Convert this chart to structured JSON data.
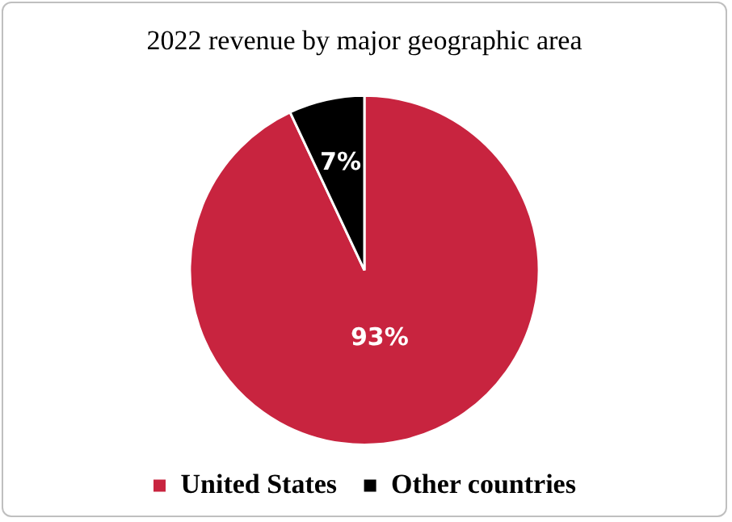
{
  "chart_data": {
    "type": "pie",
    "title": "2022 revenue by major geographic area",
    "categories": [
      "United States",
      "Other countries"
    ],
    "values": [
      93,
      7
    ],
    "colors": [
      "#c8243f",
      "#000000"
    ],
    "value_labels": [
      "93%",
      "7%"
    ],
    "legend": "bottom"
  }
}
